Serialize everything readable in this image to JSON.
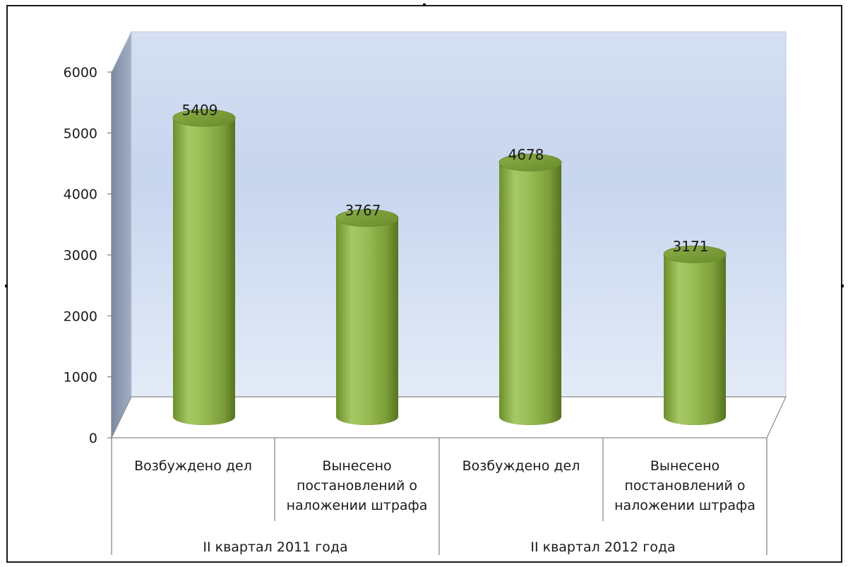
{
  "chart_data": {
    "type": "bar",
    "style": "3d-cylinder",
    "groups": [
      {
        "label": "II квартал 2011 года",
        "categories": [
          "Возбуждено дел",
          "Вынесено постановлений о наложении штрафа"
        ]
      },
      {
        "label": "II квартал 2012 года",
        "categories": [
          "Возбуждено дел",
          "Вынесено постановлений о наложении штрафа"
        ]
      }
    ],
    "categories": [
      "Возбуждено дел",
      "Вынесено постановлений о наложении штрафа",
      "Возбуждено дел",
      "Вынесено постановлений о наложении штрафа"
    ],
    "category_label_lines": [
      [
        "Возбуждено дел"
      ],
      [
        "Вынесено",
        "постановлений о",
        "наложении штрафа"
      ],
      [
        "Возбуждено дел"
      ],
      [
        "Вынесено",
        "постановлений о",
        "наложении штрафа"
      ]
    ],
    "values": [
      5409,
      3767,
      4678,
      3171
    ],
    "data_labels": [
      "5409",
      "3767",
      "4678",
      "3171"
    ],
    "yticks": [
      "0",
      "1000",
      "2000",
      "3000",
      "4000",
      "5000",
      "6000"
    ],
    "ylim": [
      0,
      6000
    ],
    "title": "",
    "xlabel": "",
    "ylabel": "",
    "legend": "none",
    "grid": false,
    "colors": {
      "bar_light": "#a8c96a",
      "bar_mid": "#8fb148",
      "bar_dark": "#5a7a24",
      "bar_top": "#7a9c38",
      "back_wall_top": "#c9d4ee",
      "back_wall_bottom": "#dfe8f6",
      "side_wall": "#8e9bb3",
      "floor": "#ffffff",
      "axis": "#808080"
    }
  }
}
